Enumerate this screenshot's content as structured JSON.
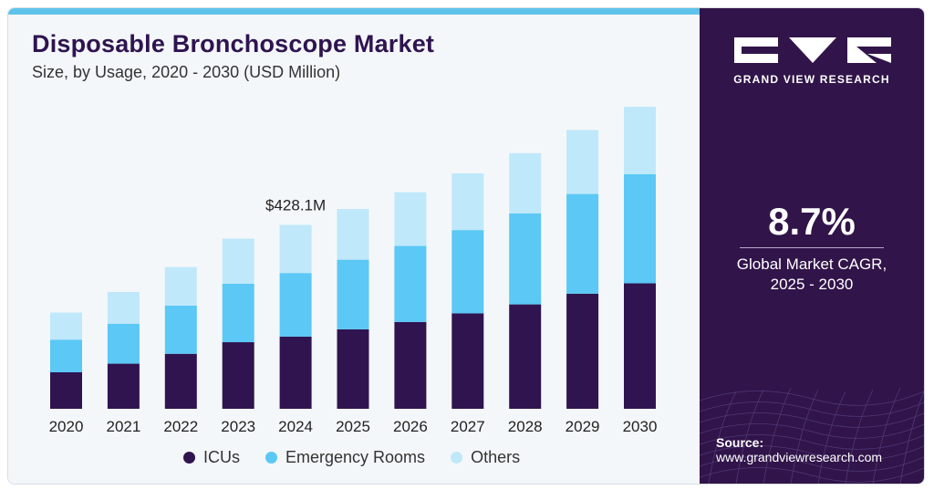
{
  "header": {
    "title": "Disposable Bronchoscope Market",
    "subtitle": "Size, by Usage, 2020 - 2030 (USD Million)"
  },
  "colors": {
    "brand_purple": "#2f1450",
    "panel_purple": "#311449",
    "accent_blue": "#5ec3ea"
  },
  "chart_data": {
    "type": "bar",
    "stacked": true,
    "categories": [
      "2020",
      "2021",
      "2022",
      "2023",
      "2024",
      "2025",
      "2026",
      "2027",
      "2028",
      "2029",
      "2030"
    ],
    "series": [
      {
        "name": "ICUs",
        "color": "#2f1450",
        "values": [
          85,
          105,
          128,
          155,
          168,
          185,
          202,
          222,
          243,
          268,
          292
        ]
      },
      {
        "name": "Emergency Rooms",
        "color": "#5bc8f5",
        "values": [
          76,
          93,
          112,
          136,
          148,
          162,
          177,
          194,
          212,
          232,
          254
        ]
      },
      {
        "name": "Others",
        "color": "#bfe8fa",
        "values": [
          63,
          74,
          90,
          105,
          112,
          118,
          125,
          132,
          140,
          149,
          157
        ]
      }
    ],
    "annotation": {
      "category": "2024",
      "label": "$428.1M"
    },
    "ylim": [
      0,
      720
    ],
    "grid": false,
    "legend": "bottom"
  },
  "side_panel": {
    "brand": "GRAND VIEW RESEARCH",
    "cagr_value": "8.7%",
    "cagr_label_line1": "Global Market CAGR,",
    "cagr_label_line2": "2025 - 2030",
    "source_label": "Source:",
    "source_url": "www.grandviewresearch.com"
  }
}
